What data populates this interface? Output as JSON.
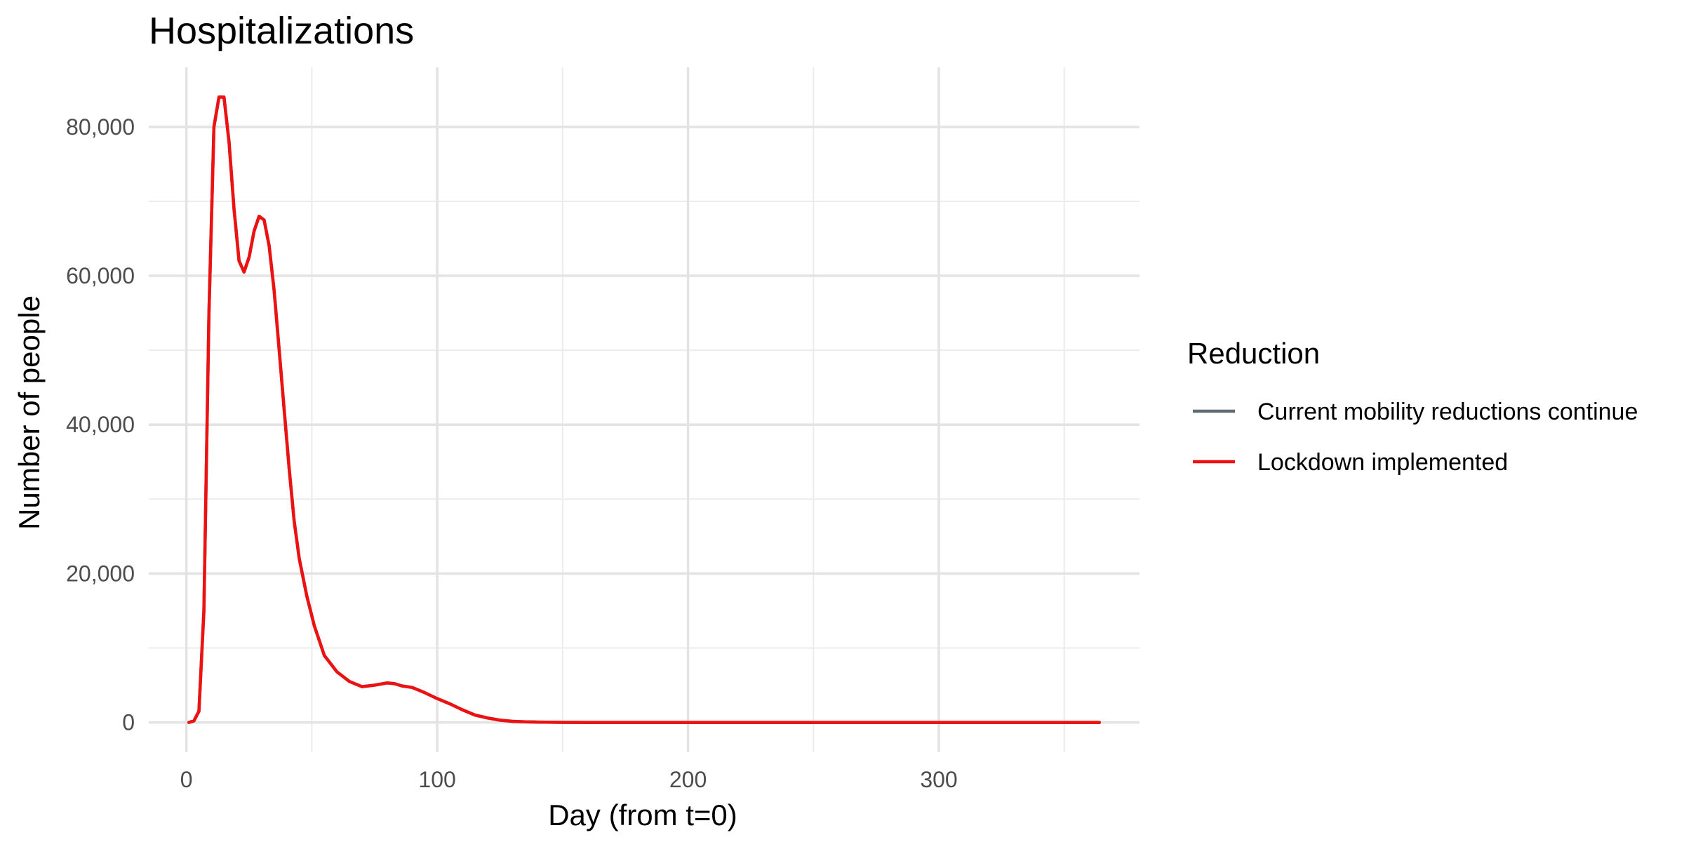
{
  "chart_data": {
    "type": "line",
    "title": "Hospitalizations",
    "xlabel": "Day (from t=0)",
    "ylabel": "Number of people",
    "xlim": [
      -15,
      380
    ],
    "ylim": [
      -4000,
      88000
    ],
    "x_major_ticks": [
      0,
      100,
      200,
      300
    ],
    "x_minor_ticks": [
      50,
      150,
      250,
      350
    ],
    "y_major_ticks": [
      0,
      20000,
      40000,
      60000,
      80000
    ],
    "y_minor_ticks": [
      10000,
      30000,
      50000,
      70000
    ],
    "x_tick_labels": [
      "0",
      "100",
      "200",
      "300"
    ],
    "y_tick_labels": [
      "0",
      "20,000",
      "40,000",
      "60,000",
      "80,000"
    ],
    "grid": true,
    "legend": {
      "title": "Reduction",
      "position": "right",
      "entries": [
        {
          "label": "Current mobility reductions continue",
          "color": "#5f6b72"
        },
        {
          "label": "Lockdown implemented",
          "color": "#ee1111"
        }
      ]
    },
    "series": [
      {
        "name": "Current mobility reductions continue",
        "color": "#5f6b72",
        "x": [
          1,
          3,
          5,
          7,
          9,
          11,
          13,
          15,
          17,
          19,
          21,
          23,
          25,
          27,
          29,
          31,
          33,
          35,
          37,
          39,
          41,
          43,
          45,
          48,
          51,
          55,
          60,
          65,
          70,
          75,
          80,
          83,
          86,
          90,
          95,
          100,
          105,
          110,
          115,
          120,
          125,
          130,
          135,
          140,
          150,
          160,
          180,
          200,
          250,
          300,
          364
        ],
        "y": [
          0,
          200,
          1500,
          15000,
          55000,
          80000,
          84000,
          84000,
          78000,
          69000,
          62000,
          60500,
          62500,
          66000,
          68000,
          67500,
          64000,
          58000,
          50000,
          42000,
          34000,
          27000,
          22000,
          17000,
          13000,
          9000,
          6800,
          5500,
          4800,
          5000,
          5300,
          5200,
          4900,
          4700,
          4000,
          3200,
          2500,
          1700,
          1000,
          600,
          300,
          150,
          80,
          40,
          10,
          0,
          0,
          0,
          0,
          0,
          0
        ]
      },
      {
        "name": "Lockdown implemented",
        "color": "#ee1111",
        "x": [
          1,
          3,
          5,
          7,
          9,
          11,
          13,
          15,
          17,
          19,
          21,
          23,
          25,
          27,
          29,
          31,
          33,
          35,
          37,
          39,
          41,
          43,
          45,
          48,
          51,
          55,
          60,
          65,
          70,
          75,
          80,
          83,
          86,
          90,
          95,
          100,
          105,
          110,
          115,
          120,
          125,
          130,
          135,
          140,
          150,
          160,
          180,
          200,
          250,
          300,
          364
        ],
        "y": [
          0,
          200,
          1500,
          15000,
          55000,
          80000,
          84000,
          84000,
          78000,
          69000,
          62000,
          60500,
          62500,
          66000,
          68000,
          67500,
          64000,
          58000,
          50000,
          42000,
          34000,
          27000,
          22000,
          17000,
          13000,
          9000,
          6800,
          5500,
          4800,
          5000,
          5300,
          5200,
          4900,
          4700,
          4000,
          3200,
          2500,
          1700,
          1000,
          600,
          300,
          150,
          80,
          40,
          10,
          0,
          0,
          0,
          0,
          0,
          0
        ]
      }
    ]
  }
}
